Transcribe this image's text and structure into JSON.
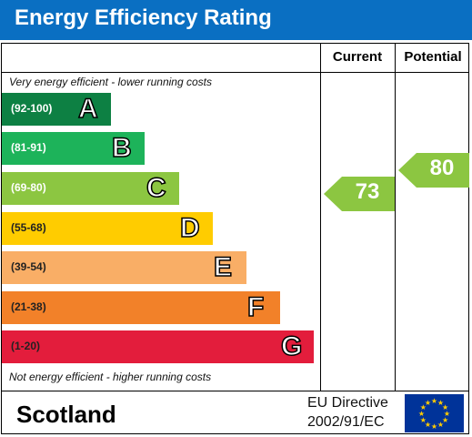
{
  "title": "Energy Efficiency Rating",
  "columns": {
    "current": "Current",
    "potential": "Potential"
  },
  "top_note": "Very energy efficient - lower running costs",
  "bottom_note": "Not energy efficient - higher running costs",
  "bands": [
    {
      "range": "(92-100)",
      "letter": "A",
      "color": "#0d8043"
    },
    {
      "range": "(81-91)",
      "letter": "B",
      "color": "#1db35a"
    },
    {
      "range": "(69-80)",
      "letter": "C",
      "color": "#8cc641"
    },
    {
      "range": "(55-68)",
      "letter": "D",
      "color": "#ffcc00"
    },
    {
      "range": "(39-54)",
      "letter": "E",
      "color": "#f9ae66"
    },
    {
      "range": "(21-38)",
      "letter": "F",
      "color": "#f28129"
    },
    {
      "range": "(1-20)",
      "letter": "G",
      "color": "#e31d3c"
    }
  ],
  "current": {
    "value": "73",
    "band": "C",
    "color": "#8cc641"
  },
  "potential": {
    "value": "80",
    "band": "C",
    "color": "#8cc641"
  },
  "footer": {
    "region": "Scotland",
    "directive_line1": "EU Directive",
    "directive_line2": "2002/91/EC"
  },
  "flag_icon": "eu-flag-icon"
}
